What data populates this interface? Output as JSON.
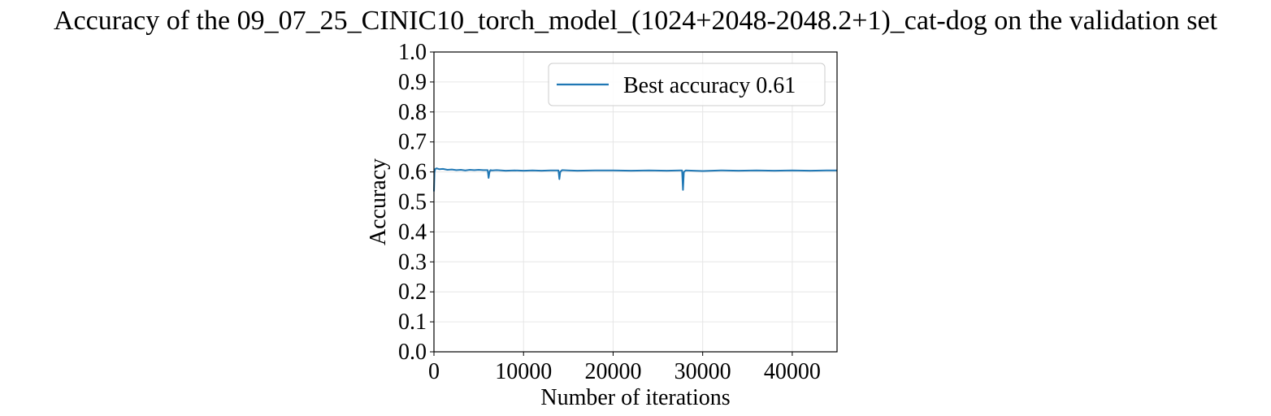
{
  "chart_data": {
    "type": "line",
    "title": "Accuracy of the 09_07_25_CINIC10_torch_model_(1024+2048-2048.2+1)_cat-dog on the validation set",
    "xlabel": "Number of iterations",
    "ylabel": "Accuracy",
    "xlim": [
      0,
      45000
    ],
    "ylim": [
      0.0,
      1.0
    ],
    "xticks": [
      "0",
      "10000",
      "20000",
      "30000",
      "40000"
    ],
    "yticks": [
      "0.0",
      "0.1",
      "0.2",
      "0.3",
      "0.4",
      "0.5",
      "0.6",
      "0.7",
      "0.8",
      "0.9",
      "1.0"
    ],
    "grid": true,
    "legend_position": "top-right",
    "series": [
      {
        "name": "Best accuracy 0.61",
        "color": "#1f77b4",
        "x": [
          0,
          60,
          150,
          300,
          600,
          1000,
          1500,
          2000,
          2500,
          3000,
          3500,
          4000,
          4500,
          5000,
          5500,
          6000,
          6100,
          6200,
          6300,
          6500,
          7000,
          8000,
          9000,
          10000,
          11000,
          12000,
          13000,
          13900,
          14000,
          14100,
          14300,
          15000,
          16000,
          18000,
          20000,
          22000,
          24000,
          26000,
          27500,
          27700,
          27800,
          27900,
          28100,
          29000,
          30000,
          31000,
          32000,
          34000,
          36000,
          38000,
          40000,
          42000,
          44000,
          45000
        ],
        "y": [
          0.535,
          0.6,
          0.61,
          0.612,
          0.609,
          0.61,
          0.607,
          0.608,
          0.606,
          0.607,
          0.605,
          0.607,
          0.606,
          0.607,
          0.606,
          0.606,
          0.58,
          0.6,
          0.606,
          0.605,
          0.606,
          0.604,
          0.605,
          0.604,
          0.605,
          0.604,
          0.605,
          0.605,
          0.576,
          0.6,
          0.606,
          0.605,
          0.604,
          0.605,
          0.605,
          0.604,
          0.605,
          0.604,
          0.605,
          0.605,
          0.54,
          0.6,
          0.605,
          0.604,
          0.603,
          0.604,
          0.605,
          0.604,
          0.605,
          0.604,
          0.605,
          0.604,
          0.605,
          0.605
        ]
      }
    ]
  }
}
